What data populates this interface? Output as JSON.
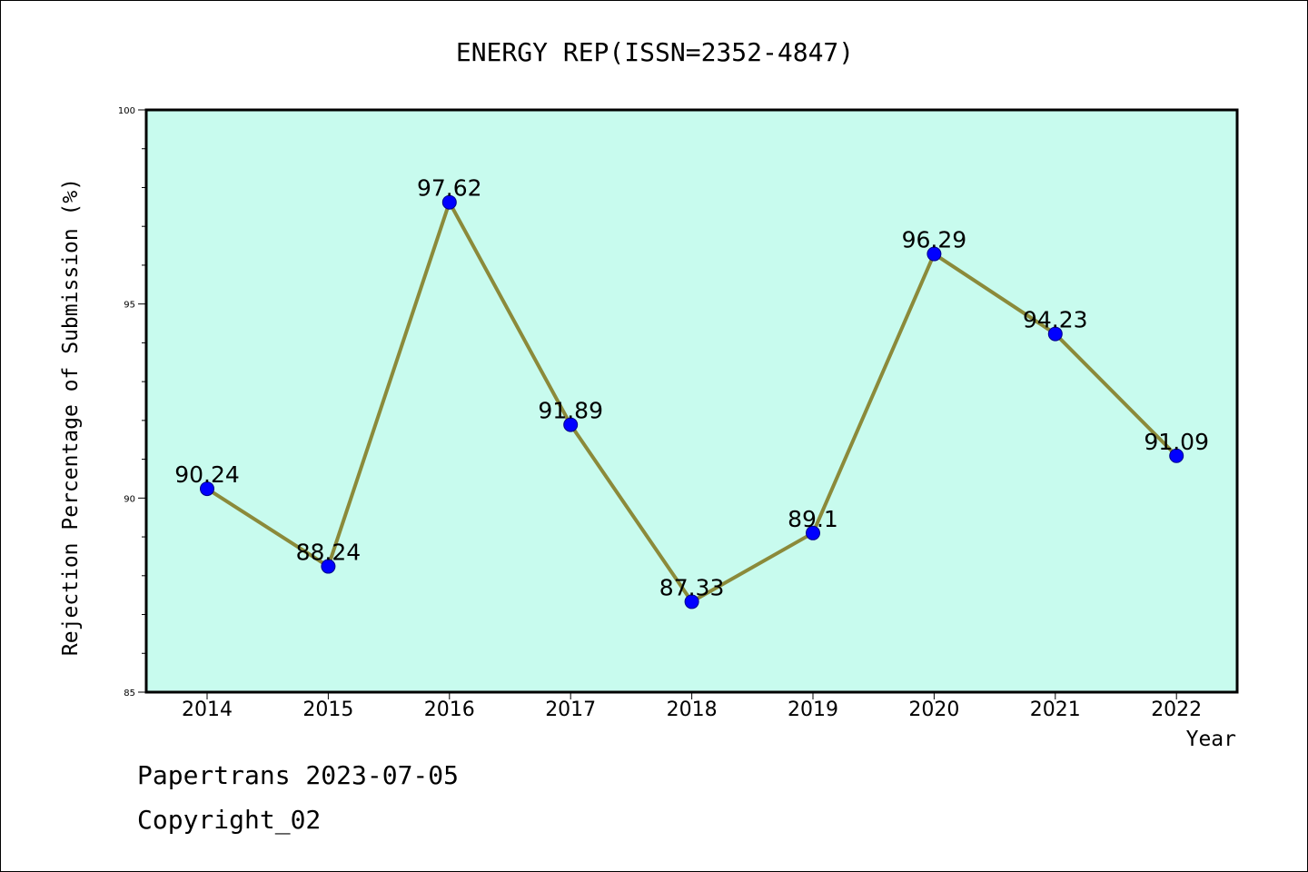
{
  "footer": {
    "line1": "Papertrans 2023-07-05",
    "line2": "Copyright_02"
  },
  "chart_data": {
    "type": "line",
    "title": "ENERGY REP(ISSN=2352-4847)",
    "xlabel": "Year",
    "ylabel": "Rejection Percentage of Submission (%)",
    "categories": [
      "2014",
      "2015",
      "2016",
      "2017",
      "2018",
      "2019",
      "2020",
      "2021",
      "2022"
    ],
    "series": [
      {
        "values": [
          90.24,
          88.24,
          97.62,
          91.89,
          87.33,
          89.1,
          96.29,
          94.23,
          91.09
        ],
        "labels": [
          "90.24",
          "88.24",
          "97.62",
          "91.89",
          "87.33",
          "89.1",
          "96.29",
          "94.23",
          "91.09"
        ]
      }
    ],
    "ylim": [
      85,
      100
    ],
    "yticks": [
      85,
      90,
      95,
      100
    ],
    "ytick_labels": [
      "85",
      "90",
      "95",
      "100"
    ],
    "grid": false,
    "colors": {
      "plot_background": "#c8fbee",
      "line": "#8b8a3a",
      "marker_fill": "#0000ff",
      "marker_edge": "#00008b",
      "frame": "#000000"
    }
  }
}
